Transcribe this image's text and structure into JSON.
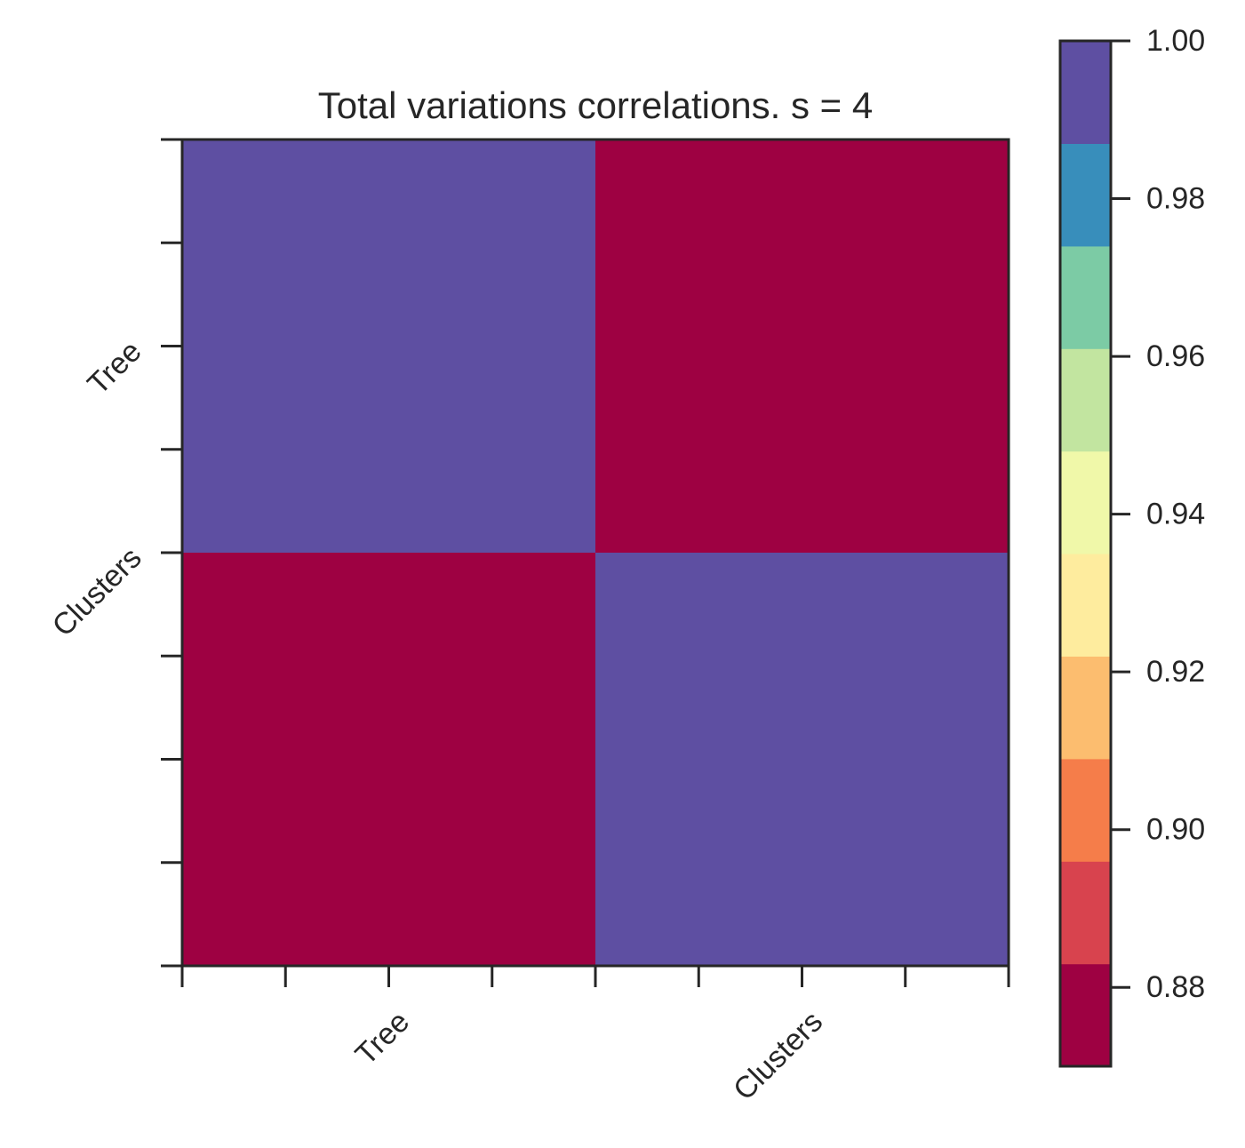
{
  "chart_data": {
    "type": "heatmap",
    "title": "Total variations correlations. s = 4",
    "x_categories": [
      "Tree",
      "Clusters"
    ],
    "y_categories": [
      "Tree",
      "Clusters"
    ],
    "grid_shape": [
      4,
      4
    ],
    "cells": [
      [
        1.0,
        1.0,
        0.87,
        0.87
      ],
      [
        1.0,
        1.0,
        0.87,
        0.87
      ],
      [
        0.87,
        0.87,
        1.0,
        1.0
      ],
      [
        0.87,
        0.87,
        1.0,
        1.0
      ]
    ],
    "x_tick_positions": [
      0,
      0.5,
      1,
      1.5,
      2,
      2.5,
      3,
      3.5,
      4
    ],
    "x_labeled_ticks": [
      {
        "pos": 1,
        "label": "Tree"
      },
      {
        "pos": 3,
        "label": "Clusters"
      }
    ],
    "y_tick_positions": [
      0,
      0.5,
      1,
      1.5,
      2,
      2.5,
      3,
      3.5,
      4
    ],
    "y_labeled_ticks": [
      {
        "pos": 1,
        "label": "Tree"
      },
      {
        "pos": 2,
        "label": "Clusters"
      }
    ],
    "colorbar": {
      "min": 0.87,
      "max": 1.0,
      "ticks": [
        0.88,
        0.9,
        0.92,
        0.94,
        0.96,
        0.98,
        1.0
      ],
      "tick_labels": [
        "0.88",
        "0.90",
        "0.92",
        "0.94",
        "0.96",
        "0.98",
        "1.00"
      ],
      "colors": [
        "#9e0142",
        "#d53e4f",
        "#f46d43",
        "#fdae61",
        "#fee08b",
        "#ffffbf",
        "#e6f598",
        "#abdda4",
        "#66c2a5",
        "#3288bd",
        "#5e4fa2"
      ],
      "band_colors": [
        "#9e0142",
        "#d8434e",
        "#f57d4a",
        "#fcbd6f",
        "#feec9e",
        "#f0f8a9",
        "#c2e5a0",
        "#7ccba5",
        "#388ebb",
        "#5e4fa2"
      ]
    },
    "colormap": "Spectral",
    "grid": false
  }
}
